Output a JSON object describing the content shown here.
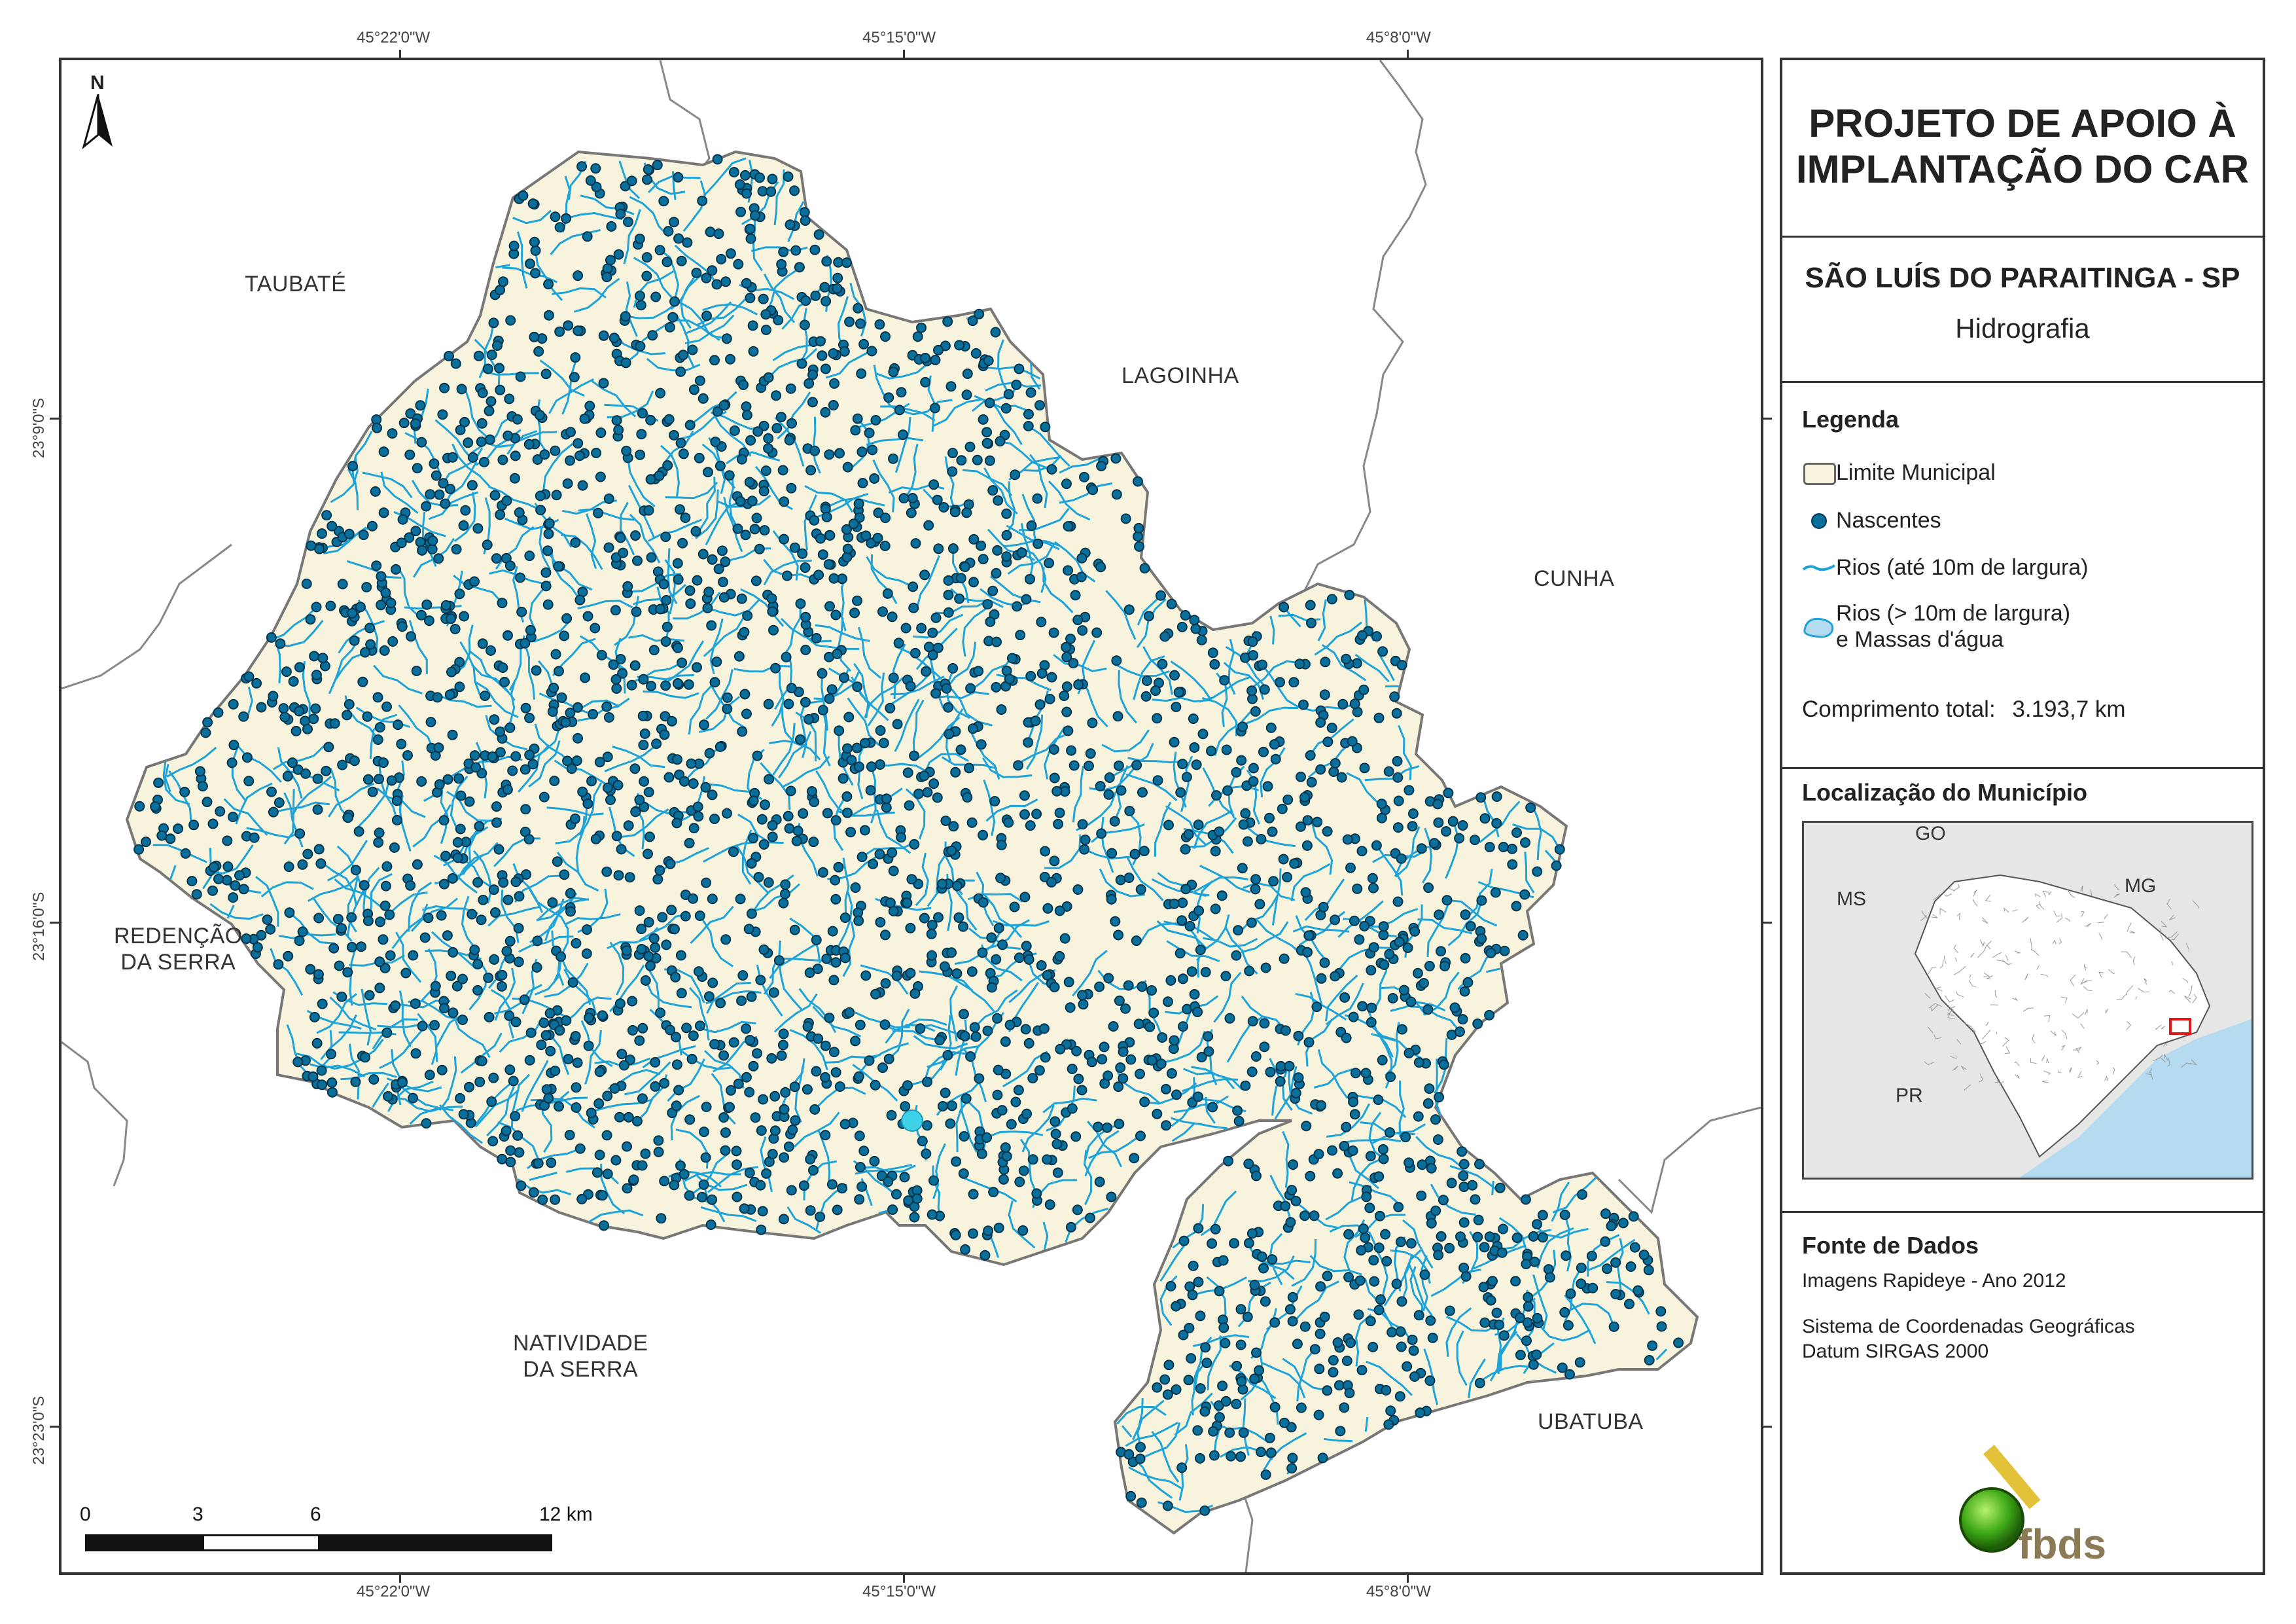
{
  "title": {
    "line1": "PROJETO DE APOIO À",
    "line2": "IMPLANTAÇÃO DO CAR"
  },
  "municipality": "SÃO LUÍS DO PARAITINGA - SP",
  "theme": "Hidrografia",
  "legend": {
    "heading": "Legenda",
    "items": {
      "boundary": "Limite Municipal",
      "springs": "Nascentes",
      "rivers_small": "Rios (até 10m de largura)",
      "rivers_large_line1": "Rios (> 10m de largura)",
      "rivers_large_line2": "e Massas d'água"
    }
  },
  "total_length": {
    "label": "Comprimento total:",
    "value": "3.193,7 km"
  },
  "location": {
    "heading": "Localização do Município",
    "labels": {
      "go": "GO",
      "ms": "MS",
      "mg": "MG",
      "pr": "PR"
    }
  },
  "sources": {
    "heading": "Fonte de Dados",
    "imagery": "Imagens Rapideye - Ano 2012",
    "crs_line1": "Sistema de Coordenadas Geográficas",
    "crs_line2": "Datum SIRGAS 2000"
  },
  "logo_text": "fbds",
  "north_label": "N",
  "coordinates": {
    "lon": [
      "45°22'0\"W",
      "45°15'0\"W",
      "45°8'0\"W"
    ],
    "lat": [
      "23°9'0\"S",
      "23°16'0\"S",
      "23°23'0\"S"
    ]
  },
  "places": {
    "taubate": "TAUBATÉ",
    "lagoinha": "LAGOINHA",
    "cunha": "CUNHA",
    "redencao_1": "REDENÇÃO",
    "redencao_2": "DA SERRA",
    "natividade_1": "NATIVIDADE",
    "natividade_2": "DA SERRA",
    "ubatuba": "UBATUBA"
  },
  "scale_bar": {
    "ticks": [
      "0",
      "3",
      "6",
      "12 km"
    ]
  },
  "colors": {
    "municipality_fill": "#f7f3dc",
    "river": "#1ea3d9",
    "spring_fill": "#0a6f9b",
    "spring_stroke": "#04354d",
    "boundary": "#777777",
    "water": "#b5dbf0"
  }
}
